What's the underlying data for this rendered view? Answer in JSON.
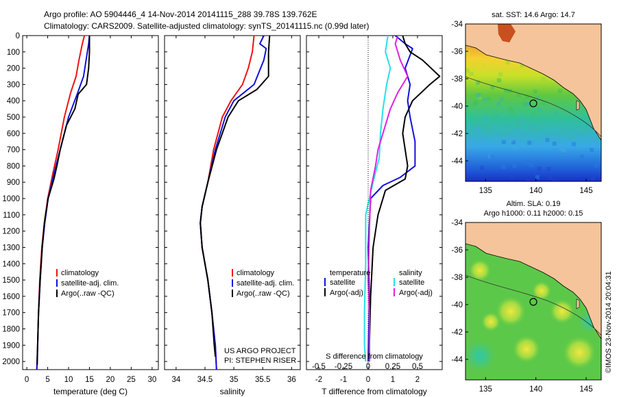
{
  "header": {
    "line1": "Argo profile: AO 5904446_4 14-Nov-2014 20141115_288 39.78S 139.762E",
    "line2": "Climatology: CARS2009. Satellite-adjusted climatology: synTS_20141115.nc (0.99d later)"
  },
  "credits": {
    "project": "US ARGO PROJECT",
    "pi": "PI: STEPHEN RISER",
    "stamp": "©IMOS 23-Nov-2014 20:04:31"
  },
  "colors": {
    "climatology": "#ee1111",
    "satellite": "#1010dd",
    "argo": "#000000",
    "sat_salinity": "#22e0e8",
    "argo_salinity": "#e020e0",
    "land": "#f5c49a"
  },
  "chart_data": [
    {
      "type": "line",
      "xlabel": "temperature (deg C)",
      "ylabel": "",
      "xlim": [
        -1,
        31.5
      ],
      "ylim": [
        2050,
        0
      ],
      "xticks": [
        "0",
        "5",
        "10",
        "15",
        "20",
        "25",
        "30"
      ],
      "yticks": [
        "0",
        "100",
        "200",
        "300",
        "400",
        "500",
        "600",
        "700",
        "800",
        "900",
        "1000",
        "1100",
        "1200",
        "1300",
        "1400",
        "1500",
        "1600",
        "1700",
        "1800",
        "1900",
        "2000"
      ],
      "legend": [
        "climatology",
        "satellite-adj. clim.",
        "Argo(..raw -QC)"
      ],
      "legend_position": "lower-right",
      "series": [
        {
          "name": "climatology",
          "color": "red",
          "points": [
            [
              13.8,
              0
            ],
            [
              13.3,
              50
            ],
            [
              12.5,
              150
            ],
            [
              11.8,
              250
            ],
            [
              10.5,
              350
            ],
            [
              9.0,
              500
            ],
            [
              7.5,
              700
            ],
            [
              6.2,
              850
            ],
            [
              5.0,
              1000
            ],
            [
              4.2,
              1150
            ],
            [
              3.6,
              1300
            ],
            [
              3.1,
              1500
            ],
            [
              2.8,
              1700
            ],
            [
              2.6,
              1900
            ],
            [
              2.4,
              2050
            ]
          ]
        },
        {
          "name": "satellite-adj. clim.",
          "color": "blue",
          "points": [
            [
              15.0,
              0
            ],
            [
              14.8,
              50
            ],
            [
              14.2,
              150
            ],
            [
              13.6,
              250
            ],
            [
              12.2,
              350
            ],
            [
              10.0,
              500
            ],
            [
              8.0,
              700
            ],
            [
              6.5,
              850
            ],
            [
              5.1,
              1000
            ],
            [
              4.3,
              1150
            ],
            [
              3.7,
              1300
            ],
            [
              3.2,
              1500
            ],
            [
              2.8,
              1700
            ],
            [
              2.6,
              1900
            ],
            [
              2.4,
              2050
            ]
          ]
        },
        {
          "name": "Argo(..raw -QC)",
          "color": "black",
          "points": [
            [
              15.0,
              0
            ],
            [
              15.0,
              100
            ],
            [
              14.8,
              200
            ],
            [
              14.3,
              300
            ],
            [
              12.3,
              360
            ],
            [
              11.5,
              450
            ],
            [
              9.5,
              550
            ],
            [
              8.0,
              700
            ],
            [
              7.2,
              800
            ],
            [
              6.5,
              880
            ],
            [
              5.1,
              1000
            ],
            [
              4.2,
              1150
            ],
            [
              3.7,
              1300
            ],
            [
              3.2,
              1500
            ],
            [
              2.8,
              1700
            ],
            [
              2.6,
              1900
            ],
            [
              2.5,
              2020
            ]
          ]
        }
      ]
    },
    {
      "type": "line",
      "xlabel": "salinity",
      "ylabel": "",
      "xlim": [
        33.8,
        36.15
      ],
      "ylim": [
        2050,
        0
      ],
      "xticks": [
        "34",
        "34.5",
        "35",
        "35.5",
        "36"
      ],
      "legend": [
        "climatology",
        "satellite-adj. clim.",
        "Argo(..raw -QC)"
      ],
      "legend_position": "lower-right",
      "series": [
        {
          "name": "climatology",
          "color": "red",
          "points": [
            [
              35.35,
              0
            ],
            [
              35.32,
              100
            ],
            [
              35.25,
              200
            ],
            [
              35.15,
              300
            ],
            [
              34.95,
              400
            ],
            [
              34.8,
              500
            ],
            [
              34.65,
              700
            ],
            [
              34.55,
              900
            ],
            [
              34.45,
              1050
            ],
            [
              34.42,
              1150
            ],
            [
              34.45,
              1300
            ],
            [
              34.55,
              1500
            ],
            [
              34.62,
              1700
            ],
            [
              34.68,
              1900
            ],
            [
              34.7,
              2050
            ]
          ]
        },
        {
          "name": "satellite-adj. clim.",
          "color": "blue",
          "points": [
            [
              35.52,
              0
            ],
            [
              35.45,
              50
            ],
            [
              35.56,
              80
            ],
            [
              35.52,
              150
            ],
            [
              35.35,
              300
            ],
            [
              35.0,
              400
            ],
            [
              34.85,
              500
            ],
            [
              34.68,
              700
            ],
            [
              34.55,
              900
            ],
            [
              34.45,
              1050
            ],
            [
              34.42,
              1150
            ],
            [
              34.45,
              1300
            ],
            [
              34.55,
              1500
            ],
            [
              34.62,
              1700
            ],
            [
              34.68,
              1900
            ],
            [
              34.7,
              2050
            ]
          ]
        },
        {
          "name": "Argo(..raw -QC)",
          "color": "black",
          "points": [
            [
              35.62,
              0
            ],
            [
              35.6,
              100
            ],
            [
              35.6,
              250
            ],
            [
              35.4,
              330
            ],
            [
              35.08,
              400
            ],
            [
              34.9,
              500
            ],
            [
              34.7,
              700
            ],
            [
              34.55,
              900
            ],
            [
              34.45,
              1050
            ],
            [
              34.42,
              1150
            ],
            [
              34.45,
              1300
            ],
            [
              34.55,
              1500
            ],
            [
              34.62,
              1700
            ],
            [
              34.66,
              1900
            ],
            [
              34.68,
              1970
            ]
          ]
        }
      ]
    },
    {
      "type": "line",
      "xlabel": "T difference from climatology",
      "title_bottom": "S difference from climatology",
      "ylim": [
        2050,
        0
      ],
      "xlim": [
        -2.5,
        3
      ],
      "xticks": [
        "-2",
        "-1",
        "0",
        "1",
        "2"
      ],
      "sticks": [
        "-0.5",
        "-0.25",
        "0",
        "0.25",
        "0.5"
      ],
      "legend_temperature_title": "temperature",
      "legend_salinity_title": "salinity",
      "legend": [
        "satellite",
        "Argo(-adj)",
        "satellite",
        "Argo(-adj)"
      ],
      "series": [
        {
          "name": "satellite",
          "color": "blue",
          "points": [
            [
              1.1,
              0
            ],
            [
              1.5,
              50
            ],
            [
              1.8,
              80
            ],
            [
              1.5,
              200
            ],
            [
              1.7,
              300
            ],
            [
              1.6,
              400
            ],
            [
              1.7,
              500
            ],
            [
              1.9,
              650
            ],
            [
              1.9,
              800
            ],
            [
              1.3,
              870
            ],
            [
              0.6,
              920
            ],
            [
              0.1,
              1000
            ],
            [
              0.0,
              1300
            ],
            [
              0.05,
              1600
            ],
            [
              0.0,
              2000
            ]
          ]
        },
        {
          "name": "Argo(-adj)",
          "color": "black",
          "points": [
            [
              1.4,
              0
            ],
            [
              1.5,
              50
            ],
            [
              1.7,
              100
            ],
            [
              2.2,
              150
            ],
            [
              2.9,
              250
            ],
            [
              2.5,
              300
            ],
            [
              1.8,
              400
            ],
            [
              1.5,
              500
            ],
            [
              1.4,
              600
            ],
            [
              1.6,
              800
            ],
            [
              1.5,
              880
            ],
            [
              0.7,
              950
            ],
            [
              0.4,
              1100
            ],
            [
              0.2,
              1300
            ],
            [
              0.1,
              1600
            ],
            [
              0.05,
              1900
            ],
            [
              0.05,
              2000
            ]
          ]
        },
        {
          "name": "satellite",
          "color": "cyan",
          "points": [
            [
              0.8,
              0
            ],
            [
              0.7,
              100
            ],
            [
              0.9,
              200
            ],
            [
              0.75,
              300
            ],
            [
              0.6,
              450
            ],
            [
              0.5,
              600
            ],
            [
              0.45,
              750
            ],
            [
              0.2,
              900
            ],
            [
              -0.1,
              1100
            ],
            [
              -0.1,
              1400
            ],
            [
              -0.15,
              1700
            ],
            [
              -0.15,
              1900
            ],
            [
              -0.1,
              2000
            ]
          ]
        },
        {
          "name": "Argo(-adj)",
          "color": "magenta",
          "points": [
            [
              1.2,
              0
            ],
            [
              1.1,
              50
            ],
            [
              1.3,
              150
            ],
            [
              1.6,
              250
            ],
            [
              1.2,
              350
            ],
            [
              0.9,
              450
            ],
            [
              0.7,
              550
            ],
            [
              0.4,
              700
            ],
            [
              0.3,
              800
            ],
            [
              0.1,
              950
            ],
            [
              0.05,
              1200
            ],
            [
              0.0,
              1500
            ],
            [
              0.05,
              1700
            ],
            [
              0.05,
              2000
            ]
          ]
        }
      ]
    },
    {
      "type": "heatmap",
      "title": "sat. SST: 14.6 Argo: 14.7",
      "xlim": [
        133,
        146.5
      ],
      "ylim": [
        -45.5,
        -34
      ],
      "xticks": [
        "135",
        "140",
        "145"
      ],
      "yticks": [
        "-34",
        "-36",
        "-38",
        "-40",
        "-42",
        "-44"
      ],
      "marker": [
        139.762,
        -39.78
      ]
    },
    {
      "type": "heatmap",
      "title": "Altim. SLA: 0.19",
      "subtitle": "Argo h1000: 0.11 h2000: 0.15",
      "xlim": [
        133,
        146.5
      ],
      "ylim": [
        -45.5,
        -34
      ],
      "xticks": [
        "135",
        "140",
        "145"
      ],
      "yticks": [
        "-34",
        "-36",
        "-38",
        "-40",
        "-42",
        "-44"
      ],
      "marker": [
        139.762,
        -39.78
      ]
    }
  ]
}
